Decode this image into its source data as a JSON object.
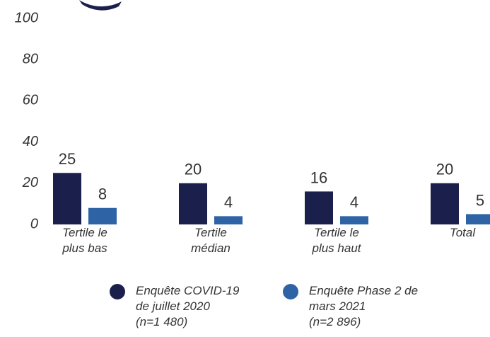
{
  "chart_data": {
    "type": "bar",
    "categories": [
      "Tertile le\nplus bas",
      "Tertile\nmédian",
      "Tertile le\nplus haut",
      "Total"
    ],
    "series": [
      {
        "name": "Enquête COVID-19\nde juillet 2020\n(n=1 480)",
        "color": "#1b1f4b",
        "values": [
          25,
          20,
          16,
          20
        ]
      },
      {
        "name": "Enquête Phase 2 de\nmars 2021\n(n=2 896)",
        "color": "#2e63a6",
        "values": [
          8,
          4,
          4,
          5
        ]
      }
    ],
    "ylim": [
      0,
      100
    ],
    "yticks": [
      0,
      20,
      40,
      60,
      80,
      100
    ],
    "grid": false,
    "legend": "bottom"
  }
}
